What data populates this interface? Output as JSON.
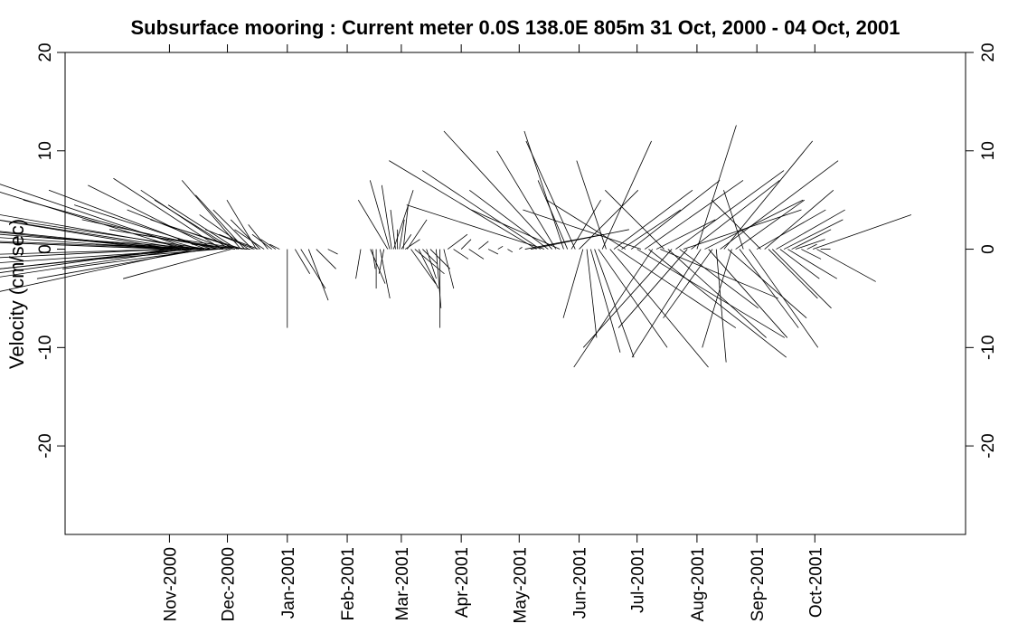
{
  "chart_data": {
    "type": "stick-vector",
    "title": "Subsurface mooring : Current meter  0.0S 138.0E    805m  31 Oct, 2000 - 04 Oct, 2001",
    "ylabel": "Velocity (cm/sec)",
    "xlabel": "",
    "xlim": [
      "2000-09-08",
      "2001-12-18"
    ],
    "ylim": [
      -29,
      20
    ],
    "y_ticks": [
      -20,
      -10,
      0,
      10,
      20
    ],
    "x_ticks": [
      {
        "date": "2000-11-01",
        "label": "Nov-2000"
      },
      {
        "date": "2000-12-01",
        "label": "Dec-2000"
      },
      {
        "date": "2001-01-01",
        "label": "Jan-2001"
      },
      {
        "date": "2001-02-01",
        "label": "Feb-2001"
      },
      {
        "date": "2001-03-01",
        "label": "Mar-2001"
      },
      {
        "date": "2001-04-01",
        "label": "Apr-2001"
      },
      {
        "date": "2001-05-01",
        "label": "May-2001"
      },
      {
        "date": "2001-06-01",
        "label": "Jun-2001"
      },
      {
        "date": "2001-07-01",
        "label": "Jul-2001"
      },
      {
        "date": "2001-08-01",
        "label": "Aug-2001"
      },
      {
        "date": "2001-09-01",
        "label": "Sep-2001"
      },
      {
        "date": "2001-10-01",
        "label": "Oct-2001"
      }
    ],
    "grid": false,
    "right_axis": true,
    "top_ticks": true,
    "color": "#000000",
    "sticks": [
      {
        "t": "2000-10-31",
        "u": -40,
        "v": 4
      },
      {
        "t": "2000-10-31",
        "u": -40,
        "v": -2
      },
      {
        "t": "2000-10-31",
        "u": -38,
        "v": 1.5
      },
      {
        "t": "2000-11-01",
        "u": -36,
        "v": -5
      },
      {
        "t": "2000-11-02",
        "u": -37,
        "v": 2.5
      },
      {
        "t": "2000-11-03",
        "u": -33,
        "v": 5.5
      },
      {
        "t": "2000-11-04",
        "u": -35,
        "v": -1
      },
      {
        "t": "2000-11-05",
        "u": -30,
        "v": 3
      },
      {
        "t": "2000-11-06",
        "u": -32,
        "v": -3.5
      },
      {
        "t": "2000-11-07",
        "u": -28,
        "v": 1
      },
      {
        "t": "2000-11-08",
        "u": -25,
        "v": 7.8
      },
      {
        "t": "2000-11-09",
        "u": -30,
        "v": -4.5
      },
      {
        "t": "2000-11-10",
        "u": -27,
        "v": 4.2
      },
      {
        "t": "2000-11-11",
        "u": -24,
        "v": -2.5
      },
      {
        "t": "2000-11-12",
        "u": -22,
        "v": 7.5
      },
      {
        "t": "2000-11-13",
        "u": -26,
        "v": 2
      },
      {
        "t": "2000-11-14",
        "u": -23,
        "v": -5
      },
      {
        "t": "2000-11-15",
        "u": -20,
        "v": 3.5
      },
      {
        "t": "2000-11-16",
        "u": -22,
        "v": -1.5
      },
      {
        "t": "2000-11-17",
        "u": -18,
        "v": 5
      },
      {
        "t": "2000-11-18",
        "u": -21,
        "v": 0.8
      },
      {
        "t": "2000-11-19",
        "u": -17,
        "v": -3
      },
      {
        "t": "2000-11-20",
        "u": -16,
        "v": 6
      },
      {
        "t": "2000-11-21",
        "u": -19,
        "v": 2.8
      },
      {
        "t": "2000-11-22",
        "u": -15,
        "v": -2
      },
      {
        "t": "2000-11-23",
        "u": -14,
        "v": 4.5
      },
      {
        "t": "2000-11-24",
        "u": -17,
        "v": 1.2
      },
      {
        "t": "2000-11-25",
        "u": -13,
        "v": 6.5
      },
      {
        "t": "2000-11-26",
        "u": -12,
        "v": -1
      },
      {
        "t": "2000-11-27",
        "u": -14,
        "v": 3
      },
      {
        "t": "2000-11-28",
        "u": -11,
        "v": 7.2
      },
      {
        "t": "2000-11-29",
        "u": -13,
        "v": 0.5
      },
      {
        "t": "2000-11-30",
        "u": -10,
        "v": 4
      },
      {
        "t": "2000-12-01",
        "u": -12,
        "v": 2
      },
      {
        "t": "2000-12-02",
        "u": -9,
        "v": 6
      },
      {
        "t": "2000-12-03",
        "u": -11,
        "v": -3
      },
      {
        "t": "2000-12-04",
        "u": -8,
        "v": 5
      },
      {
        "t": "2000-12-05",
        "u": -10,
        "v": 1.5
      },
      {
        "t": "2000-12-06",
        "u": -7,
        "v": 4.5
      },
      {
        "t": "2000-12-07",
        "u": -9,
        "v": 3
      },
      {
        "t": "2000-12-08",
        "u": -6,
        "v": 7
      },
      {
        "t": "2000-12-09",
        "u": -8,
        "v": 2.5
      },
      {
        "t": "2000-12-10",
        "u": -5,
        "v": 5.5
      },
      {
        "t": "2000-12-11",
        "u": -7,
        "v": 1
      },
      {
        "t": "2000-12-12",
        "u": -5,
        "v": 3.5
      },
      {
        "t": "2000-12-13",
        "u": -6,
        "v": 0.5
      },
      {
        "t": "2000-12-14",
        "u": -4,
        "v": 4
      },
      {
        "t": "2000-12-15",
        "u": -5,
        "v": 2
      },
      {
        "t": "2000-12-16",
        "u": -3,
        "v": 5
      },
      {
        "t": "2000-12-17",
        "u": -4,
        "v": 1.5
      },
      {
        "t": "2000-12-18",
        "u": -3,
        "v": 3
      },
      {
        "t": "2000-12-20",
        "u": -3,
        "v": 2
      },
      {
        "t": "2000-12-22",
        "u": -2,
        "v": 2.5
      },
      {
        "t": "2000-12-24",
        "u": -2,
        "v": 1.5
      },
      {
        "t": "2000-12-26",
        "u": -1.5,
        "v": 1
      },
      {
        "t": "2000-12-28",
        "u": -1,
        "v": 0.5
      },
      {
        "t": "2001-01-01",
        "u": 0,
        "v": -8
      },
      {
        "t": "2001-01-05",
        "u": 1.5,
        "v": -2.5
      },
      {
        "t": "2001-01-08",
        "u": 2.5,
        "v": -4
      },
      {
        "t": "2001-01-12",
        "u": 2,
        "v": -5.2
      },
      {
        "t": "2001-01-16",
        "u": 2,
        "v": -2
      },
      {
        "t": "2001-01-22",
        "u": 1,
        "v": -0.5
      },
      {
        "t": "2001-02-08",
        "u": -0.5,
        "v": -3
      },
      {
        "t": "2001-02-13",
        "u": 1.5,
        "v": -3.5
      },
      {
        "t": "2001-02-14",
        "u": 0.3,
        "v": -2
      },
      {
        "t": "2001-02-16",
        "u": 0,
        "v": -4
      },
      {
        "t": "2001-02-18",
        "u": 1,
        "v": -5
      },
      {
        "t": "2001-02-20",
        "u": -0.5,
        "v": -2.5
      },
      {
        "t": "2001-02-22",
        "u": -3,
        "v": 5
      },
      {
        "t": "2001-02-23",
        "u": -2,
        "v": 7
      },
      {
        "t": "2001-02-24",
        "u": -1,
        "v": 6.5
      },
      {
        "t": "2001-02-25",
        "u": 2,
        "v": 6
      },
      {
        "t": "2001-02-26",
        "u": -0.5,
        "v": 4
      },
      {
        "t": "2001-02-27",
        "u": 0,
        "v": 2
      },
      {
        "t": "2001-02-28",
        "u": 0.5,
        "v": 3
      },
      {
        "t": "2001-03-01",
        "u": 1,
        "v": 1.5
      },
      {
        "t": "2001-03-02",
        "u": 0.5,
        "v": 4.5
      },
      {
        "t": "2001-03-03",
        "u": 1.5,
        "v": 1
      },
      {
        "t": "2001-03-04",
        "u": 2,
        "v": 3
      },
      {
        "t": "2001-03-06",
        "u": 2.5,
        "v": -3.5
      },
      {
        "t": "2001-03-08",
        "u": 3,
        "v": -2.5
      },
      {
        "t": "2001-03-10",
        "u": 2,
        "v": -4
      },
      {
        "t": "2001-03-12",
        "u": 1.5,
        "v": -1.5
      },
      {
        "t": "2001-03-14",
        "u": 1,
        "v": -3
      },
      {
        "t": "2001-03-16",
        "u": 2,
        "v": -2
      },
      {
        "t": "2001-03-19",
        "u": 0.5,
        "v": -6
      },
      {
        "t": "2001-03-21",
        "u": 0,
        "v": -8
      },
      {
        "t": "2001-03-23",
        "u": 1,
        "v": -4
      },
      {
        "t": "2001-03-25",
        "u": 2,
        "v": 1.5
      },
      {
        "t": "2001-03-28",
        "u": 1.5,
        "v": -1
      },
      {
        "t": "2001-04-01",
        "u": 1,
        "v": 1
      },
      {
        "t": "2001-04-05",
        "u": 1.5,
        "v": -1
      },
      {
        "t": "2001-04-10",
        "u": 1,
        "v": 0.8
      },
      {
        "t": "2001-04-15",
        "u": 1,
        "v": -0.5
      },
      {
        "t": "2001-04-20",
        "u": 0.5,
        "v": 0.3
      },
      {
        "t": "2001-04-25",
        "u": 0.5,
        "v": -0.3
      },
      {
        "t": "2001-05-01",
        "u": 0.3,
        "v": 0.2
      },
      {
        "t": "2001-05-04",
        "u": 8,
        "v": 1.5
      },
      {
        "t": "2001-05-07",
        "u": 10,
        "v": 2
      },
      {
        "t": "2001-05-10",
        "u": -15,
        "v": 9
      },
      {
        "t": "2001-05-12",
        "u": -12,
        "v": 8
      },
      {
        "t": "2001-05-14",
        "u": -14,
        "v": 4.5
      },
      {
        "t": "2001-05-16",
        "u": -8,
        "v": 6
      },
      {
        "t": "2001-05-18",
        "u": -11,
        "v": 12
      },
      {
        "t": "2001-05-20",
        "u": -6,
        "v": 10
      },
      {
        "t": "2001-05-22",
        "u": -9,
        "v": 4
      },
      {
        "t": "2001-05-24",
        "u": -4,
        "v": 12
      },
      {
        "t": "2001-05-26",
        "u": -3,
        "v": 7
      },
      {
        "t": "2001-05-28",
        "u": 3,
        "v": 5
      },
      {
        "t": "2001-05-30",
        "u": -5,
        "v": 11
      },
      {
        "t": "2001-06-01",
        "u": 6,
        "v": 6
      },
      {
        "t": "2001-06-03",
        "u": -2,
        "v": -7
      },
      {
        "t": "2001-06-05",
        "u": 1,
        "v": -9
      },
      {
        "t": "2001-06-07",
        "u": 3,
        "v": -10.5
      },
      {
        "t": "2001-06-09",
        "u": 4,
        "v": -11
      },
      {
        "t": "2001-06-11",
        "u": 7,
        "v": -10
      },
      {
        "t": "2001-06-13",
        "u": 5,
        "v": 11
      },
      {
        "t": "2001-06-15",
        "u": -3,
        "v": 9
      },
      {
        "t": "2001-06-17",
        "u": 10,
        "v": -12
      },
      {
        "t": "2001-06-19",
        "u": 8,
        "v": 6
      },
      {
        "t": "2001-06-21",
        "u": 12,
        "v": -8
      },
      {
        "t": "2001-06-23",
        "u": 6,
        "v": 4
      },
      {
        "t": "2001-06-25",
        "u": -8,
        "v": 5
      },
      {
        "t": "2001-06-28",
        "u": 9,
        "v": 7
      },
      {
        "t": "2001-07-01",
        "u": 15,
        "v": -9
      },
      {
        "t": "2001-07-03",
        "u": -12,
        "v": 4
      },
      {
        "t": "2001-07-05",
        "u": 10,
        "v": 7
      },
      {
        "t": "2001-07-07",
        "u": 14,
        "v": -11
      },
      {
        "t": "2001-07-09",
        "u": -8,
        "v": -12
      },
      {
        "t": "2001-07-11",
        "u": 6,
        "v": 3
      },
      {
        "t": "2001-07-13",
        "u": 12,
        "v": -5
      },
      {
        "t": "2001-07-15",
        "u": -6,
        "v": 6
      },
      {
        "t": "2001-07-17",
        "u": 10,
        "v": -9
      },
      {
        "t": "2001-07-19",
        "u": -9,
        "v": -10
      },
      {
        "t": "2001-07-21",
        "u": 11,
        "v": 8
      },
      {
        "t": "2001-07-23",
        "u": 8,
        "v": -6
      },
      {
        "t": "2001-07-25",
        "u": 12,
        "v": 4
      },
      {
        "t": "2001-07-27",
        "u": -7,
        "v": -8
      },
      {
        "t": "2001-07-29",
        "u": 9,
        "v": 7
      },
      {
        "t": "2001-08-01",
        "u": 4,
        "v": 12.6
      },
      {
        "t": "2001-08-03",
        "u": -7,
        "v": -11
      },
      {
        "t": "2001-08-05",
        "u": 10,
        "v": 5
      },
      {
        "t": "2001-08-07",
        "u": 8,
        "v": -9
      },
      {
        "t": "2001-08-09",
        "u": -5,
        "v": -7
      },
      {
        "t": "2001-08-11",
        "u": 1,
        "v": -11.5
      },
      {
        "t": "2001-08-13",
        "u": 12,
        "v": 9
      },
      {
        "t": "2001-08-15",
        "u": 9,
        "v": 11
      },
      {
        "t": "2001-08-17",
        "u": 8,
        "v": -7
      },
      {
        "t": "2001-08-19",
        "u": -3,
        "v": -10
      },
      {
        "t": "2001-08-21",
        "u": 7,
        "v": 5
      },
      {
        "t": "2001-08-23",
        "u": 6,
        "v": -8
      },
      {
        "t": "2001-08-25",
        "u": -2,
        "v": 6
      },
      {
        "t": "2001-08-28",
        "u": 7,
        "v": -10
      },
      {
        "t": "2001-09-01",
        "u": 7,
        "v": 4
      },
      {
        "t": "2001-09-03",
        "u": -5,
        "v": 5
      },
      {
        "t": "2001-09-05",
        "u": 7,
        "v": 6
      },
      {
        "t": "2001-09-07",
        "u": 5,
        "v": -5
      },
      {
        "t": "2001-09-09",
        "u": 6,
        "v": -6
      },
      {
        "t": "2001-09-11",
        "u": 7,
        "v": 4
      },
      {
        "t": "2001-09-13",
        "u": 4,
        "v": -3
      },
      {
        "t": "2001-09-15",
        "u": 6,
        "v": 3
      },
      {
        "t": "2001-09-17",
        "u": 5,
        "v": -3
      },
      {
        "t": "2001-09-19",
        "u": 4,
        "v": 2
      },
      {
        "t": "2001-09-21",
        "u": 3,
        "v": 1
      },
      {
        "t": "2001-09-24",
        "u": 2,
        "v": -1
      },
      {
        "t": "2001-09-27",
        "u": 1,
        "v": 0.5
      },
      {
        "t": "2001-09-30",
        "u": 10,
        "v": 3.5
      },
      {
        "t": "2001-10-02",
        "u": 6,
        "v": -3.3
      },
      {
        "t": "2001-10-04",
        "u": 1,
        "v": 0
      }
    ]
  }
}
